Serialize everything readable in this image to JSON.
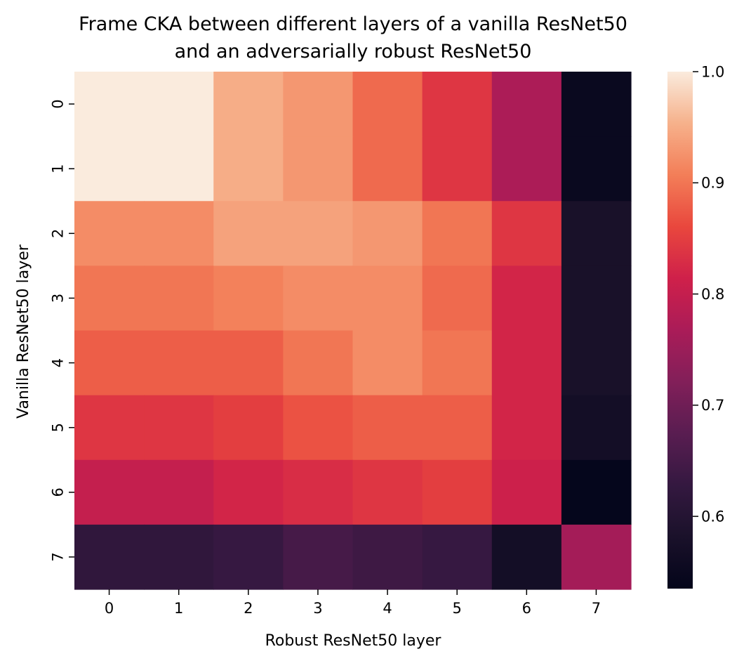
{
  "chart_data": {
    "type": "heatmap",
    "title": [
      "Frame CKA between different layers of a vanilla ResNet50",
      "and an adversarially robust ResNet50"
    ],
    "xlabel": "Robust ResNet50 layer",
    "ylabel": "Vanilla ResNet50 layer",
    "x_categories": [
      "0",
      "1",
      "2",
      "3",
      "4",
      "5",
      "6",
      "7"
    ],
    "y_categories": [
      "0",
      "1",
      "2",
      "3",
      "4",
      "5",
      "6",
      "7"
    ],
    "values": [
      [
        1.0,
        1.0,
        0.95,
        0.93,
        0.89,
        0.84,
        0.77,
        0.55
      ],
      [
        1.0,
        1.0,
        0.95,
        0.93,
        0.89,
        0.84,
        0.77,
        0.55
      ],
      [
        0.92,
        0.92,
        0.94,
        0.94,
        0.93,
        0.9,
        0.84,
        0.58
      ],
      [
        0.9,
        0.9,
        0.91,
        0.92,
        0.92,
        0.89,
        0.82,
        0.58
      ],
      [
        0.88,
        0.88,
        0.88,
        0.9,
        0.92,
        0.9,
        0.82,
        0.58
      ],
      [
        0.84,
        0.84,
        0.85,
        0.87,
        0.88,
        0.88,
        0.82,
        0.57
      ],
      [
        0.8,
        0.8,
        0.82,
        0.83,
        0.84,
        0.85,
        0.81,
        0.54
      ],
      [
        0.62,
        0.62,
        0.63,
        0.65,
        0.64,
        0.63,
        0.57,
        0.76
      ]
    ],
    "colorbar": {
      "min": 0.535,
      "max": 1.0,
      "ticks": [
        "0.6",
        "0.7",
        "0.8",
        "0.9",
        "1.0"
      ],
      "colormap": "rocket"
    },
    "grid": false
  }
}
